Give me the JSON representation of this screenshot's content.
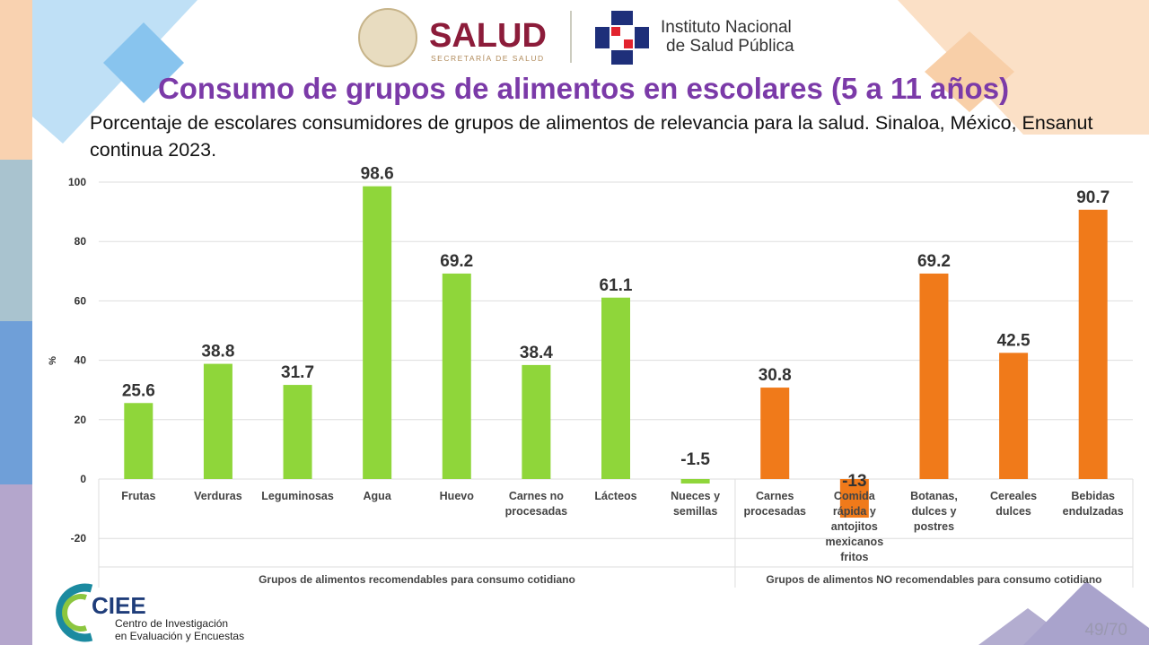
{
  "header": {
    "brand": "SALUD",
    "brand_sub": "SECRETARÍA DE SALUD",
    "institute_line1": "Instituto Nacional",
    "institute_line2": "de Salud Pública"
  },
  "title": "Consumo de grupos de alimentos en escolares (5 a 11 años)",
  "subtitle": "Porcentaje de escolares consumidores de grupos de alimentos de relevancia para la salud. Sinaloa, México, Ensanut continua 2023.",
  "footer": {
    "logo_text": "CIEE",
    "logo_line1": "Centro de Investigación",
    "logo_line2": "en Evaluación y Encuestas",
    "page": "49/70"
  },
  "chart_data": {
    "type": "bar",
    "ylabel": "%",
    "ylim": [
      -20,
      100
    ],
    "yticks": [
      -20,
      0,
      20,
      40,
      60,
      80,
      100
    ],
    "grid": true,
    "categories": [
      [
        "Frutas"
      ],
      [
        "Verduras"
      ],
      [
        "Leguminosas"
      ],
      [
        "Agua"
      ],
      [
        "Huevo"
      ],
      [
        "Carnes no",
        "procesadas"
      ],
      [
        "Lácteos"
      ],
      [
        "Nueces y",
        "semillas"
      ],
      [
        "Carnes",
        "procesadas"
      ],
      [
        "Comida",
        "rápida y",
        "antojitos",
        "mexicanos",
        "fritos"
      ],
      [
        "Botanas,",
        "dulces y",
        "postres"
      ],
      [
        "Cereales",
        "dulces"
      ],
      [
        "Bebidas",
        "endulzadas"
      ]
    ],
    "values": [
      25.6,
      38.8,
      31.7,
      98.6,
      69.2,
      38.4,
      61.1,
      -1.5,
      30.8,
      -13,
      69.2,
      42.5,
      90.7
    ],
    "labels": [
      "25.6",
      "38.8",
      "31.7",
      "98.6",
      "69.2",
      "38.4",
      "61.1",
      "-1.5",
      "30.8",
      "-13",
      "69.2",
      "42.5",
      "90.7"
    ],
    "groups": [
      {
        "name": "Grupos de alimentos recomendables para consumo cotidiano",
        "count": 8,
        "color": "#8fd63a"
      },
      {
        "name": "Grupos de alimentos NO recomendables para consumo cotidiano",
        "count": 5,
        "color": "#f07a1a"
      }
    ]
  }
}
